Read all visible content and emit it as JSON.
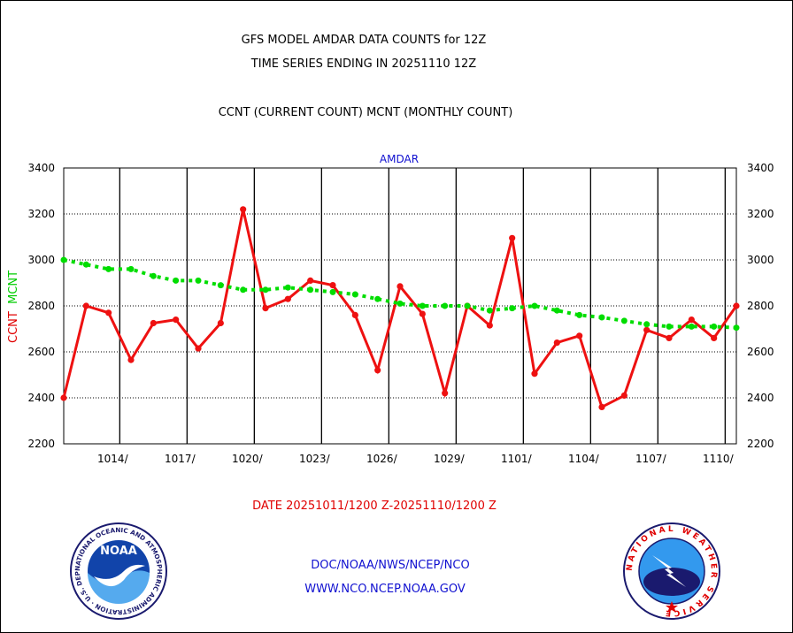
{
  "header": {
    "line1": "GFS MODEL AMDAR DATA COUNTS for 12Z",
    "line2": "TIME SERIES ENDING IN 20251110 12Z",
    "line3": "CCNT (CURRENT COUNT) MCNT (MONTHLY COUNT)"
  },
  "footer": {
    "date_range": "DATE 20251011/1200 Z-20251110/1200 Z",
    "org_path": "DOC/NOAA/NWS/NCEP/NCO",
    "website": "WWW.NCO.NCEP.NOAA.GOV"
  },
  "logos": {
    "noaa": {
      "center_text": "NOAA",
      "ring_text": "NATIONAL OCEANIC AND ATMOSPHERIC ADMINISTRATION · U.S. DEPARTMENT OF COMMERCE",
      "icon": "noaa-logo-icon"
    },
    "nws": {
      "ring_text": "NATIONAL WEATHER SERVICE",
      "icon": "nws-logo-icon"
    }
  },
  "colors": {
    "ccnt": "#ee1111",
    "mcnt": "#00dd00",
    "title": "#1010d0"
  },
  "chart_data": {
    "type": "line",
    "title": "AMDAR",
    "ylabel_series": [
      "CCNT",
      "MCNT"
    ],
    "ylim": [
      2200,
      3400
    ],
    "yticks": [
      2200,
      2400,
      2600,
      2800,
      3000,
      3200,
      3400
    ],
    "xtick_labels": [
      "1014/",
      "1017/",
      "1020/",
      "1023/",
      "1026/",
      "1029/",
      "1101/",
      "1104/",
      "1107/",
      "1110/"
    ],
    "grid": true,
    "series": [
      {
        "name": "CCNT",
        "color": "#ee1111",
        "values": [
          2400,
          2800,
          2770,
          2565,
          2725,
          2740,
          2615,
          2725,
          3220,
          2790,
          2830,
          2910,
          2890,
          2760,
          2520,
          2885,
          2765,
          2420,
          2800,
          2715,
          3095,
          2505,
          2640,
          2670,
          2360,
          2410,
          2695,
          2660,
          2740,
          2660,
          2800
        ]
      },
      {
        "name": "MCNT",
        "color": "#00dd00",
        "values": [
          3000,
          2980,
          2960,
          2960,
          2930,
          2910,
          2910,
          2890,
          2870,
          2870,
          2880,
          2870,
          2860,
          2850,
          2830,
          2810,
          2800,
          2800,
          2800,
          2780,
          2790,
          2800,
          2780,
          2760,
          2750,
          2735,
          2720,
          2710,
          2710,
          2710,
          2705
        ]
      }
    ]
  }
}
